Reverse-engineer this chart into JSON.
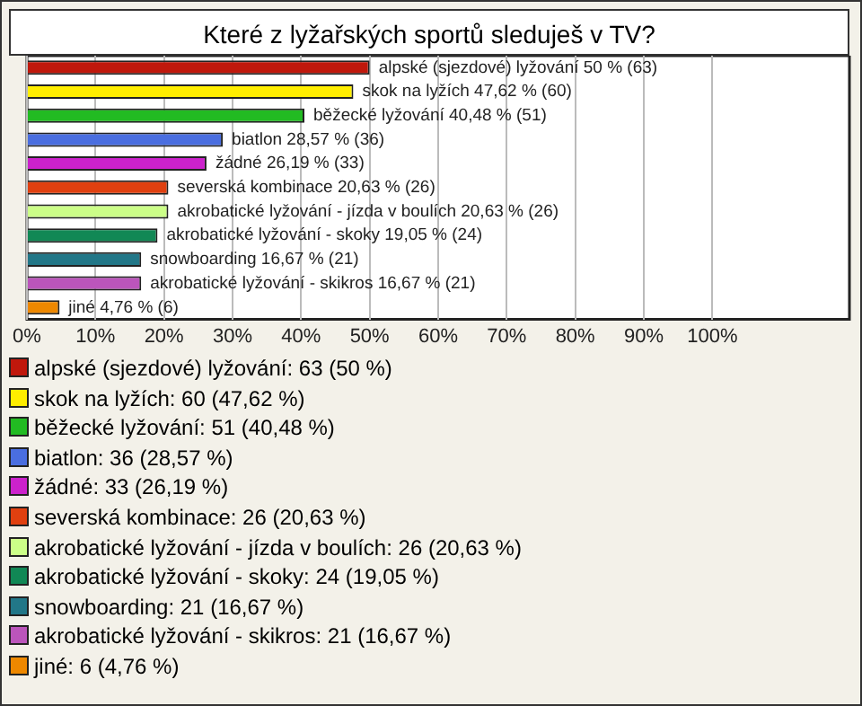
{
  "chart_data": {
    "type": "bar",
    "orientation": "horizontal",
    "title": "Které z lyžařských sportů sleduješ v TV?",
    "categories": [
      "alpské (sjezdové) lyžování",
      "skok na lyžích",
      "běžecké lyžování",
      "biatlon",
      "žádné",
      "severská kombinace",
      "akrobatické lyžování - jízda v boulích",
      "akrobatické lyžování - skoky",
      "snowboarding",
      "akrobatické lyžování - skikros",
      "jiné"
    ],
    "values": [
      50,
      47.62,
      40.48,
      28.57,
      26.19,
      20.63,
      20.63,
      19.05,
      16.67,
      16.67,
      4.76
    ],
    "value_labels": [
      "50 % (63)",
      "47,62 % (60)",
      "40,48 % (51)",
      "28,57 % (36)",
      "26,19 % (33)",
      "20,63 % (26)",
      "20,63 % (26)",
      "19,05 % (24)",
      "16,67 % (21)",
      "16,67 % (21)",
      "4,76 % (6)"
    ],
    "colors": [
      "#c0180c",
      "#ffee00",
      "#22bb22",
      "#4a6ee0",
      "#cc22cc",
      "#e04010",
      "#ccff88",
      "#118855",
      "#227788",
      "#bb55bb",
      "#ee8800"
    ],
    "xlim": [
      0,
      120
    ],
    "xticks": [
      {
        "value": 0,
        "label": "0%"
      },
      {
        "value": 10,
        "label": "10%"
      },
      {
        "value": 20,
        "label": "20%"
      },
      {
        "value": 30,
        "label": "30%"
      },
      {
        "value": 40,
        "label": "40%"
      },
      {
        "value": 50,
        "label": "50%"
      },
      {
        "value": 60,
        "label": "60%"
      },
      {
        "value": 70,
        "label": "70%"
      },
      {
        "value": 80,
        "label": "80%"
      },
      {
        "value": 90,
        "label": "90%"
      },
      {
        "value": 100,
        "label": "100%"
      }
    ],
    "grid": "x",
    "tick_labels": "x",
    "annotations": [
      "alpské (sjezdové) lyžování: 63 (50 %)",
      "skok na lyžích: 60 (47,62 %)",
      "běžecké lyžování: 51 (40,48 %)",
      "biatlon: 36 (28,57 %)",
      "žádné: 33 (26,19 %)",
      "severská kombinace: 26 (20,63 %)",
      "akrobatické lyžování - jízda v boulích: 26 (20,63 %)",
      "akrobatické lyžování - skoky: 24 (19,05 %)",
      "snowboarding: 21 (16,67 %)",
      "akrobatické lyžování - skikros: 21 (16,67 %)",
      "jiné: 6 (4,76 %)"
    ]
  }
}
